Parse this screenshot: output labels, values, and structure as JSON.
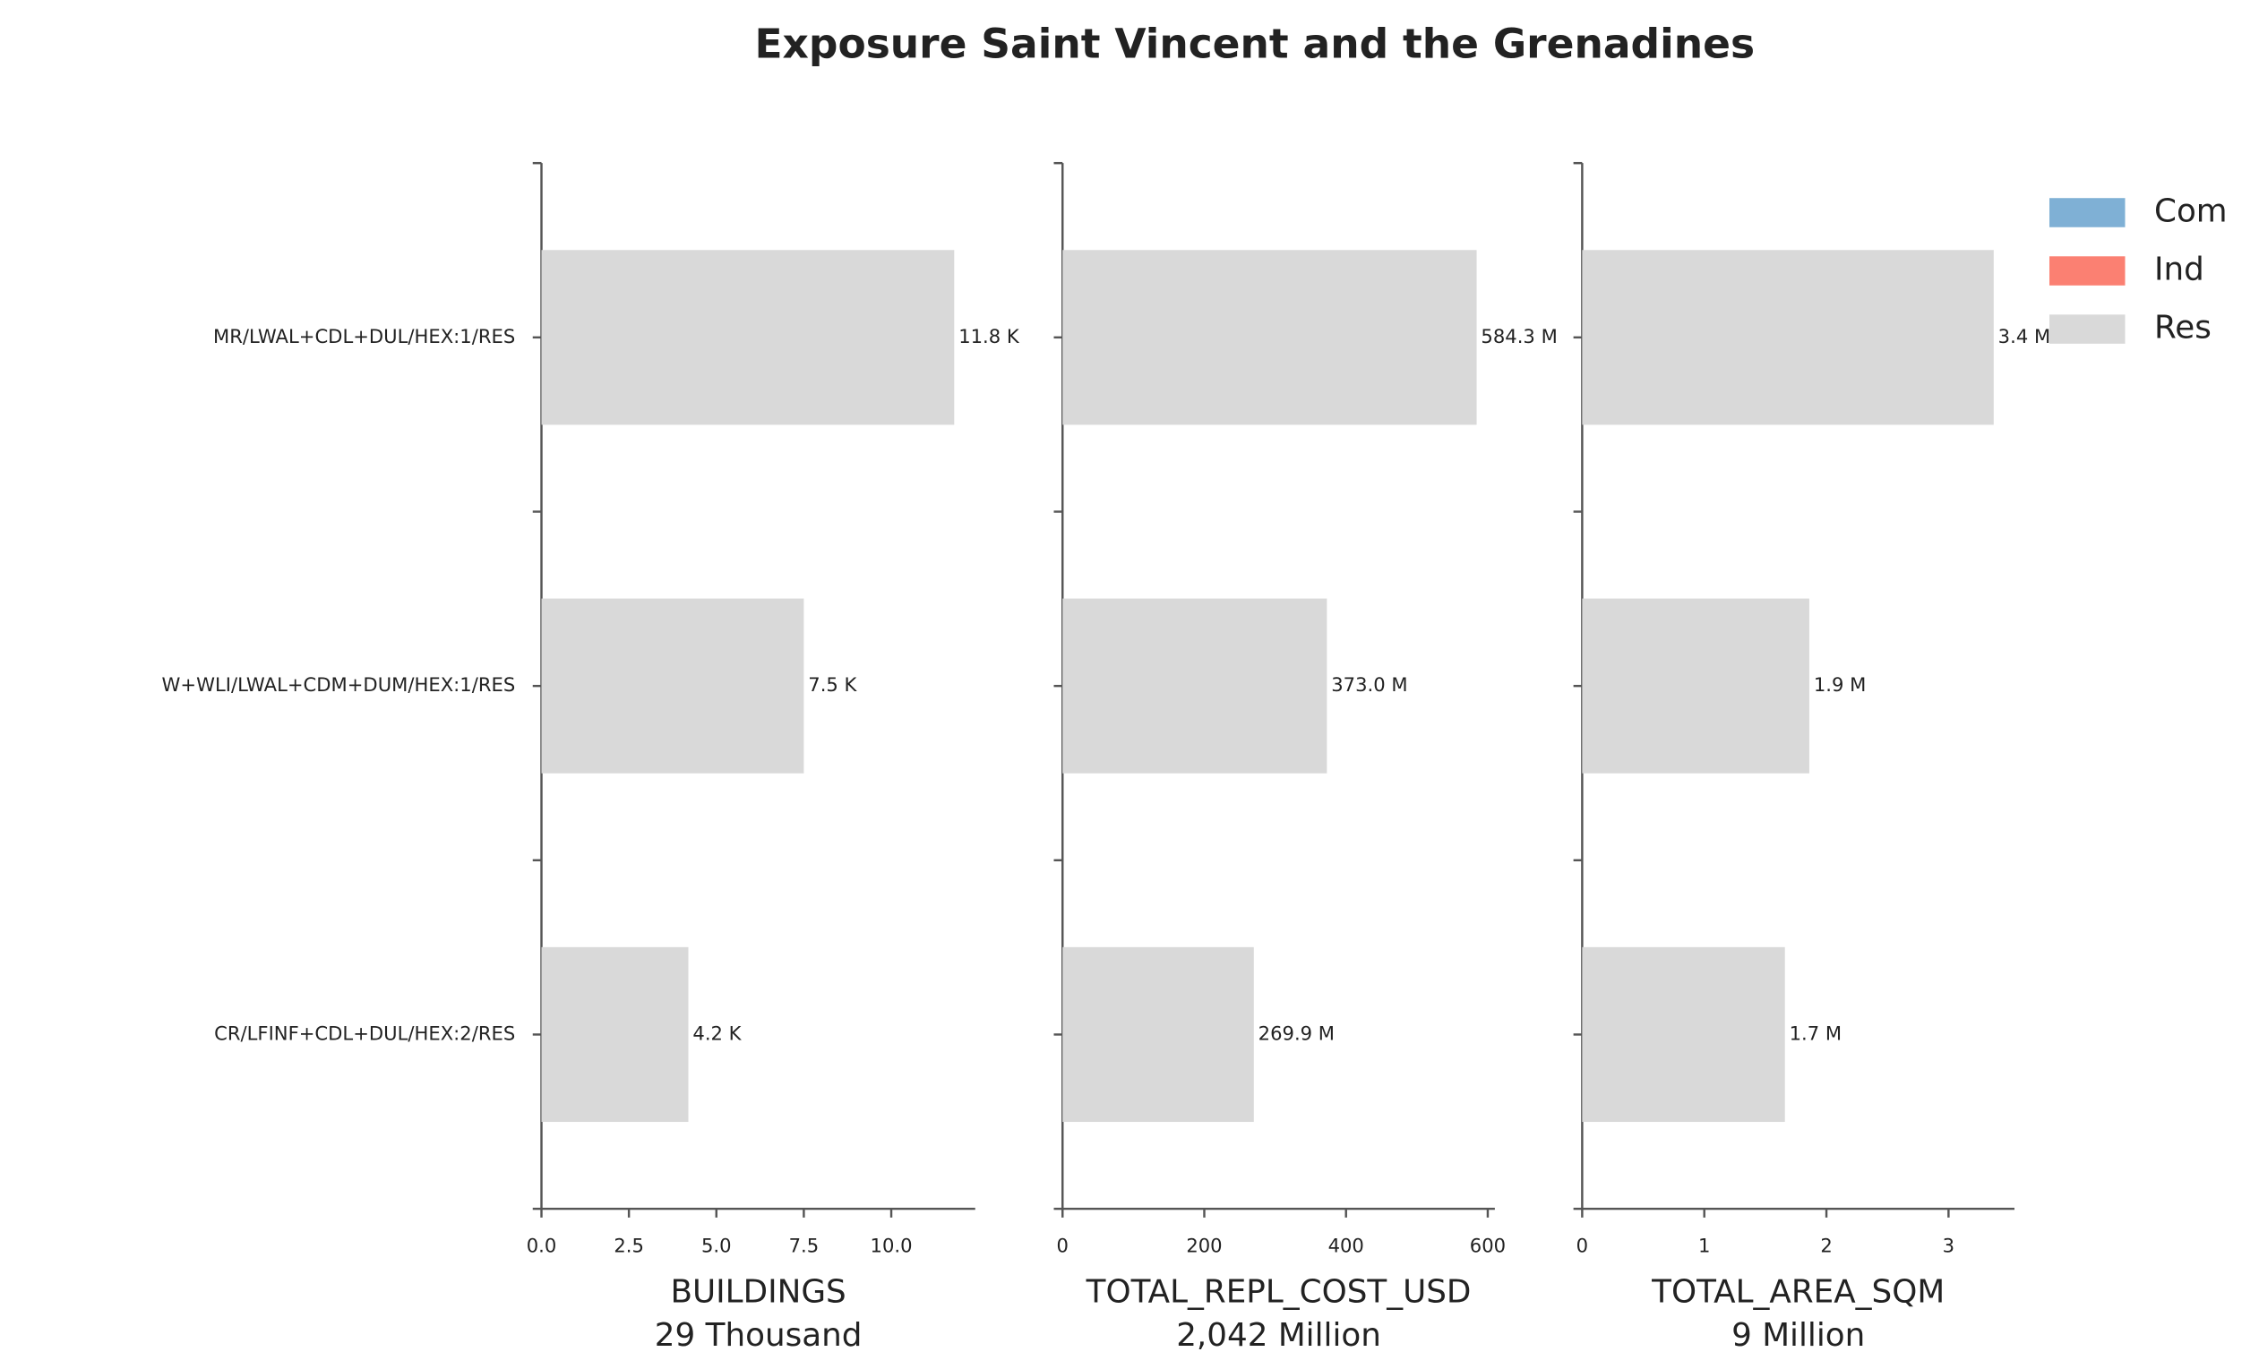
{
  "title": "Exposure Saint Vincent and the Grenadines",
  "legend": {
    "entries": [
      {
        "name": "Com",
        "color": "#7fb0d5"
      },
      {
        "name": "Ind",
        "color": "#fb8072"
      },
      {
        "name": "Res",
        "color": "#d9d9d9"
      }
    ]
  },
  "chart_data": [
    {
      "type": "bar",
      "orientation": "horizontal",
      "xlabel": "BUILDINGS",
      "subtitle": "29 Thousand",
      "categories": [
        "MR/LWAL+CDL+DUL/HEX:1/RES",
        "W+WLI/LWAL+CDM+DUM/HEX:1/RES",
        "CR/LFINF+CDL+DUL/HEX:2/RES"
      ],
      "series": [
        {
          "name": "Res",
          "color": "#d9d9d9",
          "values": [
            11.8,
            7.5,
            4.2
          ],
          "value_labels": [
            "11.8 K",
            "7.5 K",
            "4.2 K"
          ]
        }
      ],
      "xlim": [
        0,
        12.4
      ],
      "xticks": [
        {
          "value": 0,
          "label": "0.0"
        },
        2.5,
        {
          "value": 5,
          "label": "5.0"
        },
        7.5,
        {
          "value": 10,
          "label": "10.0"
        }
      ]
    },
    {
      "type": "bar",
      "orientation": "horizontal",
      "xlabel": "TOTAL_REPL_COST_USD",
      "subtitle": "2,042 Million",
      "series": [
        {
          "name": "Res",
          "color": "#d9d9d9",
          "values": [
            584.3,
            373.0,
            269.9
          ],
          "value_labels": [
            "584.3 M",
            "373.0 M",
            "269.9 M"
          ]
        }
      ],
      "xlim": [
        0,
        610
      ],
      "xticks": [
        0,
        200,
        400,
        600
      ]
    },
    {
      "type": "bar",
      "orientation": "horizontal",
      "xlabel": "TOTAL_AREA_SQM",
      "subtitle": "9 Million",
      "series": [
        {
          "name": "Res",
          "color": "#d9d9d9",
          "values": [
            3.37,
            1.86,
            1.66
          ],
          "value_labels": [
            "3.4 M",
            "1.9 M",
            "1.7 M"
          ]
        }
      ],
      "xlim": [
        0,
        3.54
      ],
      "xticks": [
        0,
        1,
        2,
        3
      ]
    }
  ]
}
